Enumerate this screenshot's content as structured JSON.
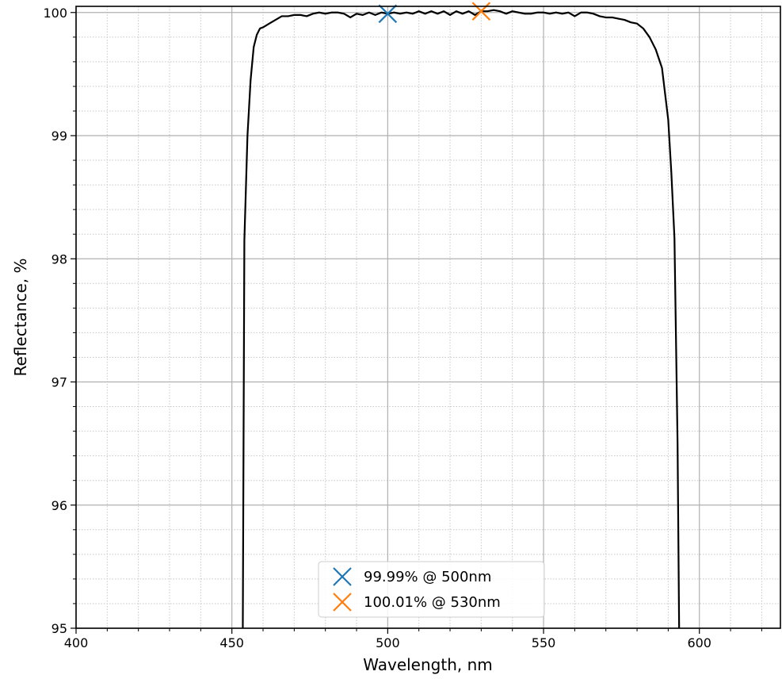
{
  "chart_data": {
    "type": "line",
    "xlabel": "Wavelength, nm",
    "ylabel": "Reflectance, %",
    "x": [
      453.5,
      454,
      455,
      456,
      457,
      458,
      459,
      460,
      462,
      464,
      466,
      468,
      470,
      472,
      474,
      476,
      478,
      480,
      482,
      484,
      486,
      488,
      490,
      492,
      494,
      496,
      498,
      500,
      502,
      504,
      506,
      508,
      510,
      512,
      514,
      516,
      518,
      520,
      522,
      524,
      526,
      528,
      530,
      532,
      534,
      536,
      538,
      540,
      542,
      544,
      546,
      548,
      550,
      552,
      554,
      556,
      558,
      560,
      562,
      564,
      566,
      568,
      570,
      572,
      574,
      576,
      578,
      580,
      582,
      584,
      586,
      588,
      590,
      591,
      592,
      593,
      593.5
    ],
    "values": [
      95,
      98.15,
      99.0,
      99.45,
      99.72,
      99.82,
      99.87,
      99.88,
      99.91,
      99.94,
      99.97,
      99.97,
      99.98,
      99.98,
      99.97,
      99.99,
      100.0,
      99.99,
      100.0,
      100.0,
      99.99,
      99.96,
      99.99,
      99.98,
      100.0,
      99.98,
      100.0,
      99.99,
      100.0,
      99.99,
      100.0,
      99.99,
      100.01,
      99.99,
      100.01,
      99.99,
      100.01,
      99.98,
      100.01,
      99.99,
      100.01,
      99.98,
      100.01,
      100.01,
      100.02,
      100.01,
      99.99,
      100.01,
      100.0,
      99.99,
      99.99,
      100.0,
      100.0,
      99.99,
      100.0,
      99.99,
      100.0,
      99.97,
      100.0,
      100.0,
      99.99,
      99.97,
      99.96,
      99.96,
      99.95,
      99.94,
      99.92,
      99.91,
      99.87,
      99.8,
      99.7,
      99.55,
      99.13,
      98.7,
      98.17,
      96.5,
      95
    ],
    "color": "#000000",
    "points": [
      {
        "label": "99.99% @ 500nm",
        "x": 500,
        "y": 99.99,
        "color": "#1f77b4"
      },
      {
        "label": "100.01% @ 530nm",
        "x": 530,
        "y": 100.01,
        "color": "#ff7f0e"
      }
    ],
    "xlim": [
      400,
      626
    ],
    "ylim": [
      95,
      100.05
    ],
    "xticks": [
      400,
      450,
      500,
      550,
      600
    ],
    "yticks": [
      95,
      96,
      97,
      98,
      99,
      100
    ],
    "xminorticks": [
      410,
      420,
      430,
      440,
      460,
      470,
      480,
      490,
      510,
      520,
      530,
      540,
      560,
      570,
      580,
      590,
      610,
      620
    ],
    "yminorticks": [
      95.2,
      95.4,
      95.6,
      95.8,
      96.2,
      96.4,
      96.6,
      96.8,
      97.2,
      97.4,
      97.6,
      97.8,
      98.2,
      98.4,
      98.6,
      98.8,
      99.2,
      99.4,
      99.6,
      99.8
    ],
    "grid": true,
    "legend": "lower center"
  }
}
